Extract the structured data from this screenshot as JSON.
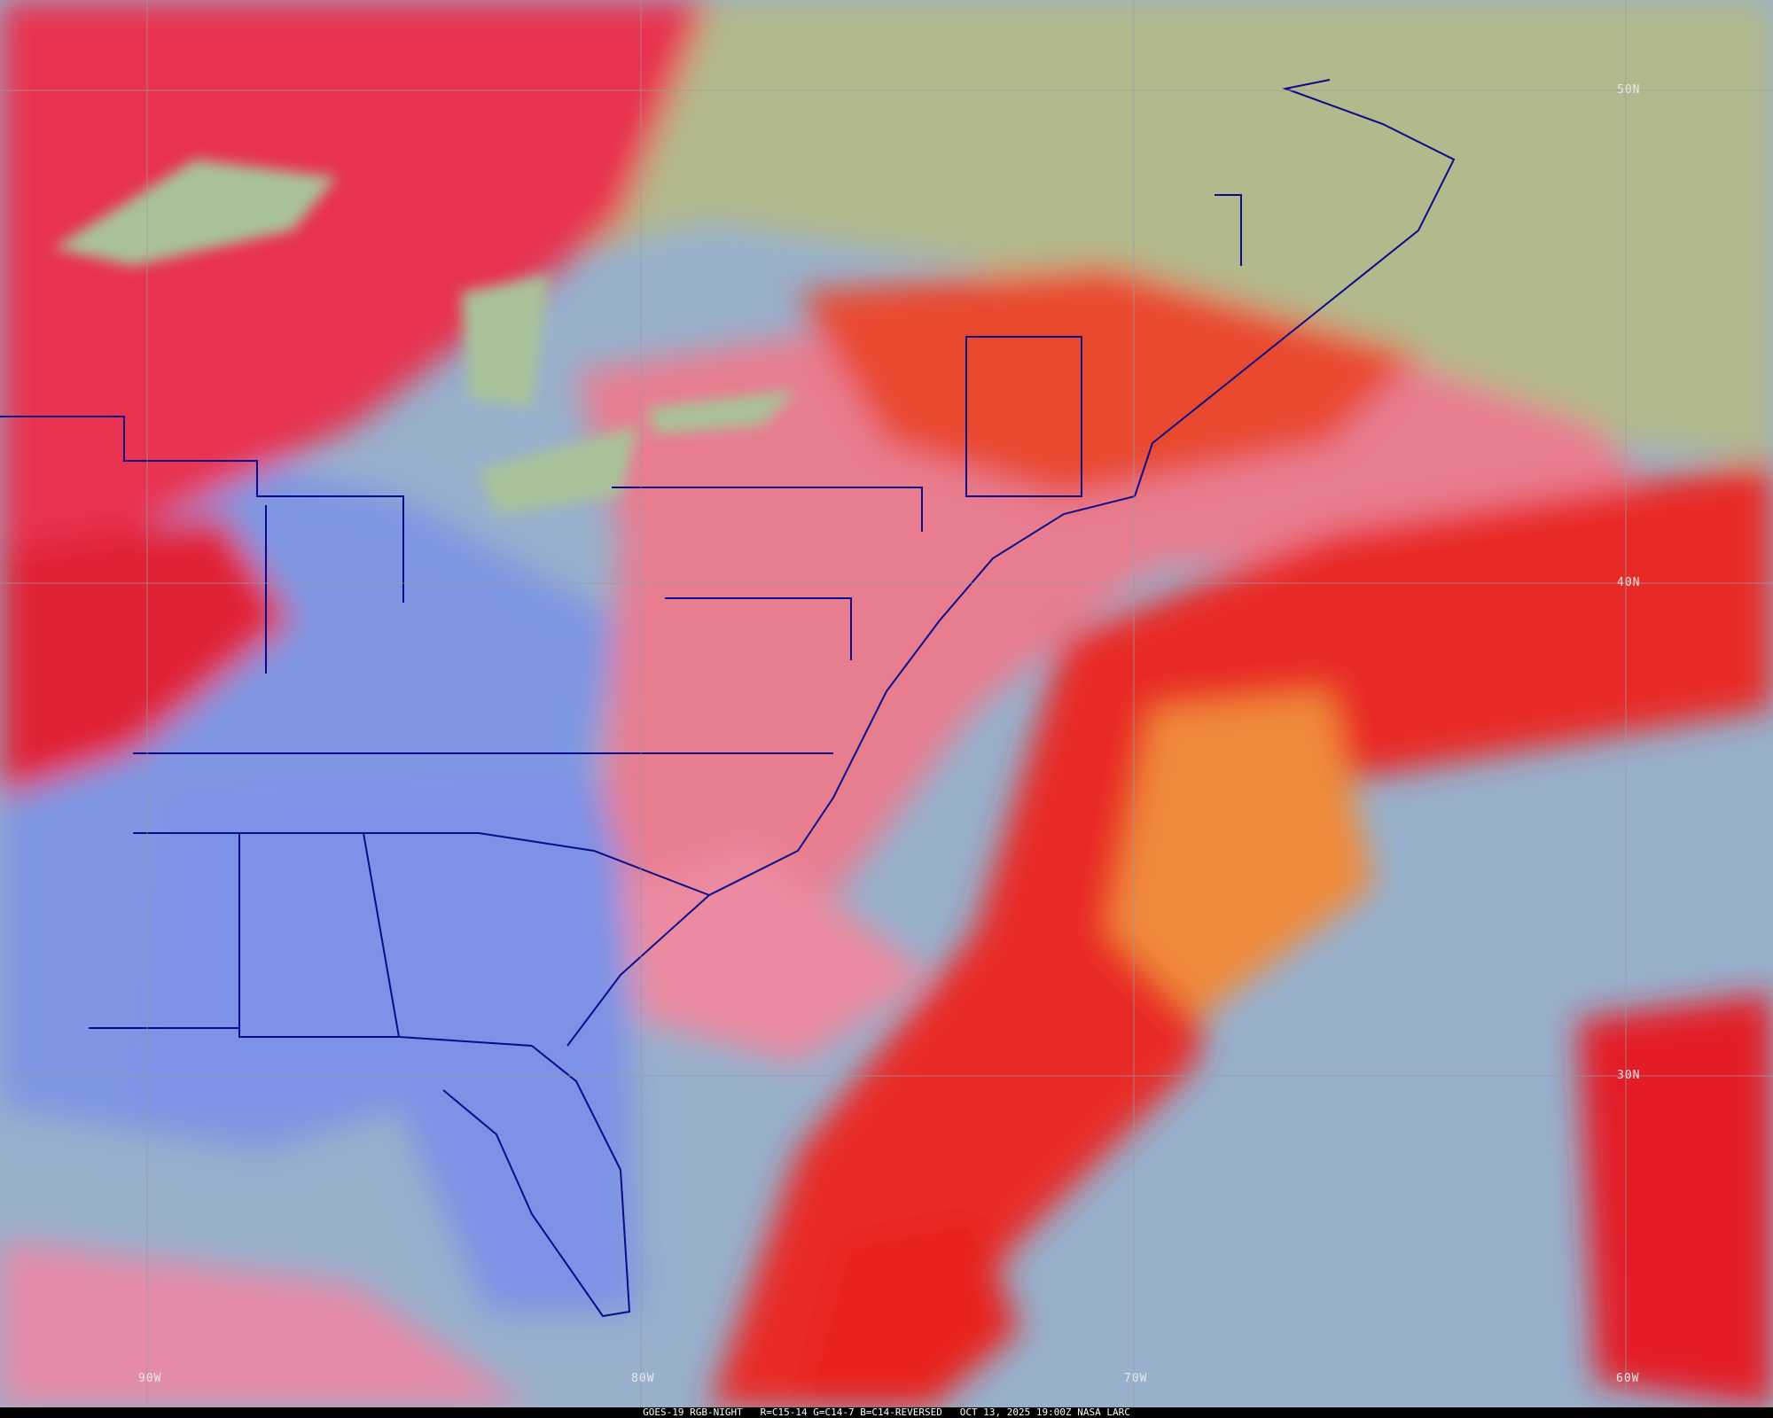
{
  "caption": "GOES-19 RGB-NIGHT   R=C15-14 G=C14-7 B=C14-REVERSED   OCT 13, 2025 19:00Z NASA LARC",
  "latitude_labels": [
    "50N",
    "40N",
    "30N"
  ],
  "longitude_labels": [
    "90W",
    "80W",
    "70W",
    "60W"
  ],
  "colors": {
    "land_clear": "#b3ba8a",
    "surface_blue": "#7c93e0",
    "ocean": "#9ab3cc",
    "high_cloud": "#e01a2e",
    "mid_cloud": "#f08a3a",
    "pink_cloud": "#e8789a",
    "boundaries": "#0a0a8a",
    "grid": "#9a9aa8"
  }
}
